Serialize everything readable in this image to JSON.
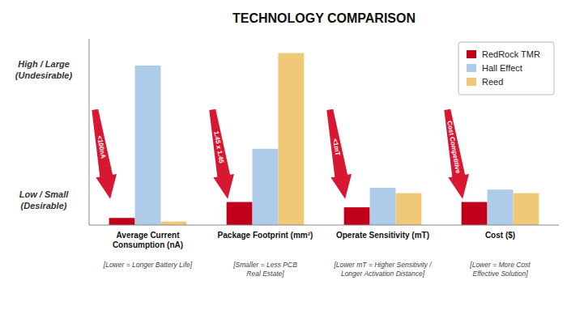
{
  "chart_data": {
    "type": "bar",
    "title": "TECHNOLOGY COMPARISON",
    "categories": [
      "Average Current\nConsumption (nA)",
      "Package Footprint (mm²)",
      "Operate Sensitivity (mT)",
      "Cost ($)"
    ],
    "category_notes": [
      "[Lower = Longer Battery Life]",
      "[Smaller = Less PCB\nReal Estate]",
      "[Lower mT = Higher Sensitivity /\nLonger Activation Distance]",
      "[Lower = More Cost\nEffective Solution]"
    ],
    "series": [
      {
        "name": "RedRock TMR",
        "color": "#C0001A",
        "values": [
          0.04,
          0.13,
          0.1,
          0.13
        ]
      },
      {
        "name": "Hall Effect",
        "color": "#AECBEA",
        "values": [
          0.9,
          0.43,
          0.21,
          0.2
        ]
      },
      {
        "name": "Reed",
        "color": "#F0C878",
        "values": [
          0.02,
          0.97,
          0.18,
          0.18
        ]
      }
    ],
    "ylabel_top": "High / Large\n(Undesirable)",
    "ylabel_bottom": "Low / Small\n(Desirable)",
    "annotations": [
      {
        "text": "<100nA",
        "category": 0,
        "color": "#D81832"
      },
      {
        "text": "1.45 x 1.45",
        "category": 1,
        "color": "#D81832"
      },
      {
        "text": "<1mT",
        "category": 2,
        "color": "#D81832"
      },
      {
        "text": "Cost Competitive",
        "category": 3,
        "color": "#D81832"
      }
    ],
    "ylim": [
      0,
      1.05
    ],
    "yticks": [],
    "grid": false,
    "tick_labels": false,
    "legend": "upper right"
  }
}
